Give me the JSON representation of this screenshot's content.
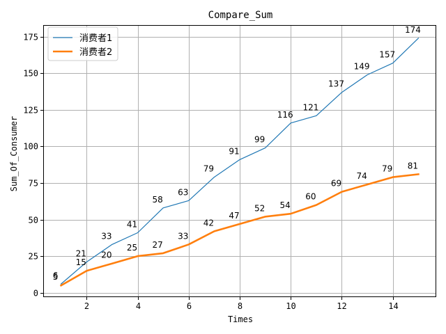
{
  "chart_data": {
    "type": "line",
    "title": "Compare_Sum",
    "xlabel": "Times",
    "ylabel": "Sum_Of_Consumer",
    "xlim": [
      0.3,
      15.7
    ],
    "ylim": [
      -3,
      183
    ],
    "xticks": [
      2,
      4,
      6,
      8,
      10,
      12,
      14
    ],
    "yticks": [
      0,
      25,
      50,
      75,
      100,
      125,
      150,
      175
    ],
    "grid": true,
    "legend_position": "upper-left",
    "x": [
      1,
      2,
      3,
      4,
      5,
      6,
      7,
      8,
      9,
      10,
      11,
      12,
      13,
      14,
      15
    ],
    "series": [
      {
        "name": "消费者1",
        "color": "#1f77b4",
        "line_width": "thin",
        "values": [
          6,
          21,
          33,
          41,
          58,
          63,
          79,
          91,
          99,
          116,
          121,
          137,
          149,
          157,
          174
        ]
      },
      {
        "name": "消费者2",
        "color": "#ff7f0e",
        "line_width": "thick",
        "values": [
          5,
          15,
          20,
          25,
          27,
          33,
          42,
          47,
          52,
          54,
          60,
          69,
          74,
          79,
          81
        ]
      }
    ]
  }
}
